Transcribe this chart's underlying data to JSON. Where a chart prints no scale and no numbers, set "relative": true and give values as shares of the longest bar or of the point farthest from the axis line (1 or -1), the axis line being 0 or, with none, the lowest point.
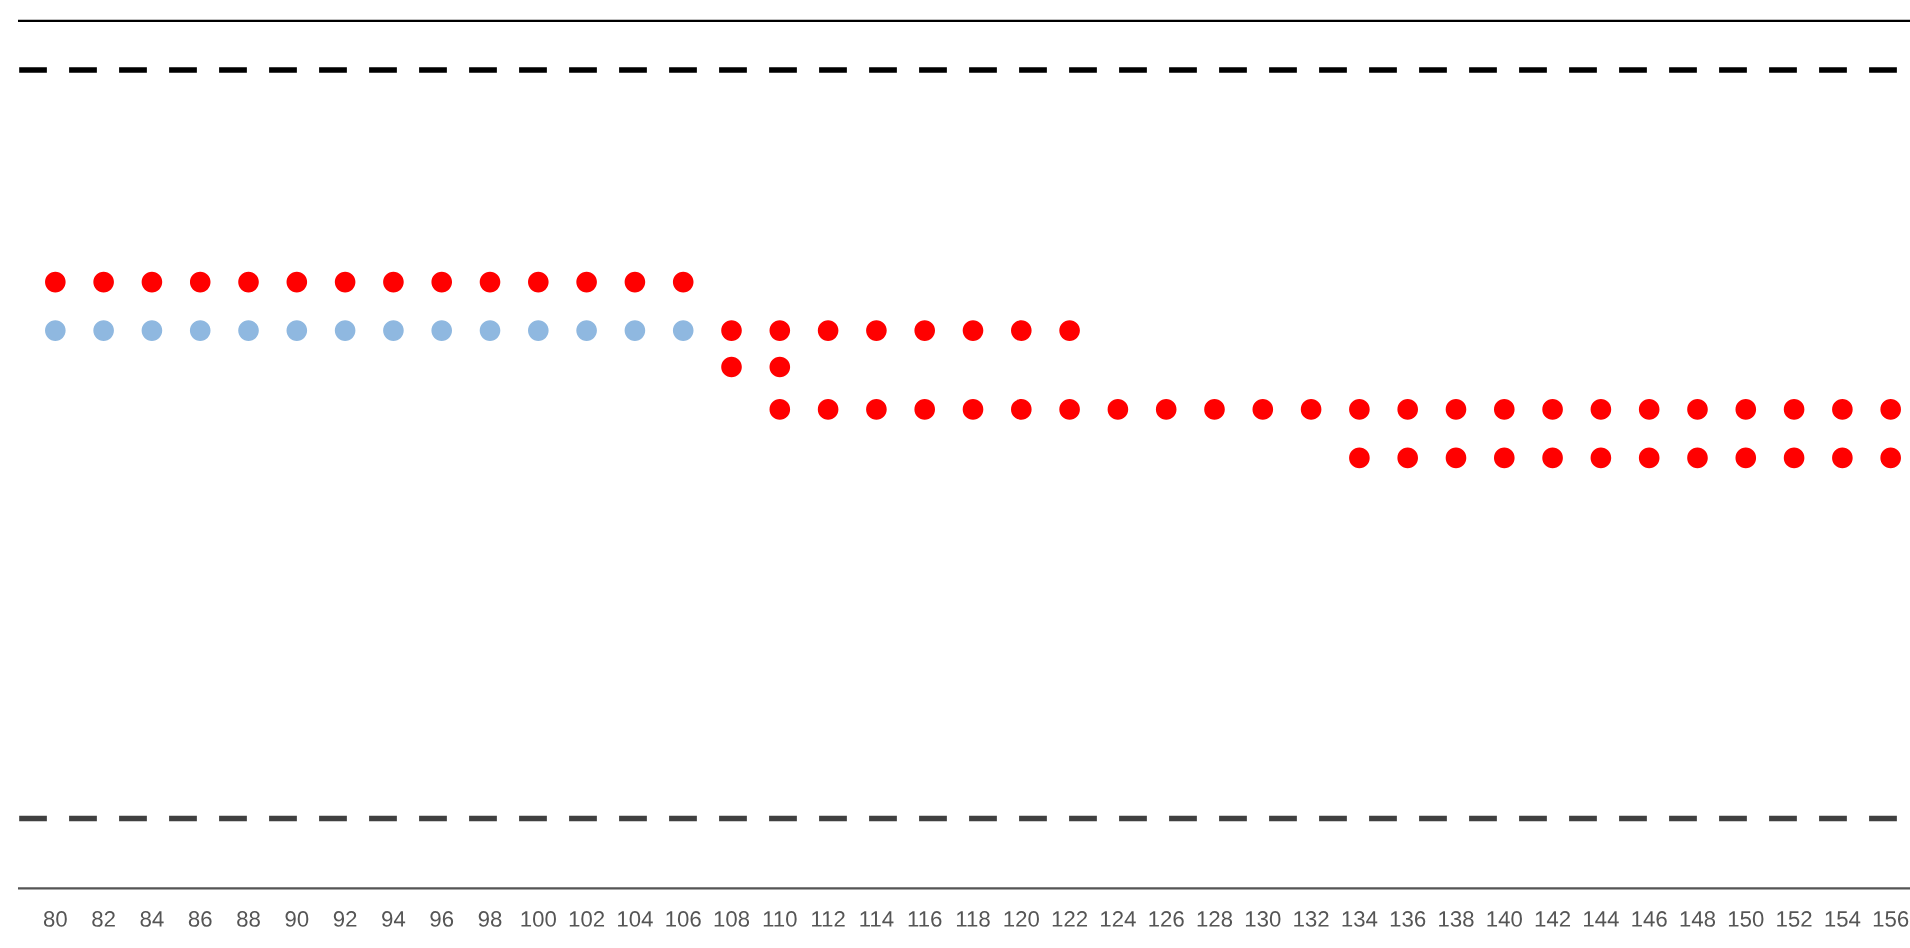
{
  "chart_data": {
    "type": "scatter",
    "relative": true,
    "marker": "circle",
    "categories": [
      "80",
      "82",
      "84",
      "86",
      "88",
      "90",
      "92",
      "94",
      "96",
      "98",
      "100",
      "102",
      "104",
      "106",
      "108",
      "110",
      "112",
      "114",
      "116",
      "118",
      "120",
      "122",
      "124",
      "126",
      "128",
      "130",
      "132",
      "134",
      "136",
      "138",
      "140",
      "142",
      "144",
      "146",
      "148",
      "150",
      "152",
      "154",
      "156"
    ],
    "series": [
      {
        "color": "#8fb8e0",
        "values": [
          0.92,
          0.92,
          0.92,
          0.92,
          0.92,
          0.92,
          0.92,
          0.92,
          0.92,
          0.92,
          0.92,
          0.92,
          0.92,
          0.92,
          null,
          null,
          null,
          null,
          null,
          null,
          null,
          null,
          null,
          null,
          null,
          null,
          null,
          null,
          null,
          null,
          null,
          null,
          null,
          null,
          null,
          null,
          null,
          null,
          null
        ]
      },
      {
        "color": "#ff0000",
        "values": [
          1.0,
          1.0,
          1.0,
          1.0,
          1.0,
          1.0,
          1.0,
          1.0,
          1.0,
          1.0,
          1.0,
          1.0,
          1.0,
          1.0,
          0.92,
          0.92,
          0.92,
          0.92,
          0.92,
          0.92,
          0.92,
          0.92,
          null,
          null,
          null,
          null,
          null,
          null,
          null,
          null,
          null,
          null,
          null,
          null,
          null,
          null,
          null,
          null,
          null
        ]
      },
      {
        "color": "#ff0000",
        "values": [
          null,
          null,
          null,
          null,
          null,
          null,
          null,
          null,
          null,
          null,
          null,
          null,
          null,
          null,
          0.86,
          0.86,
          null,
          null,
          null,
          null,
          null,
          null,
          null,
          null,
          null,
          null,
          null,
          null,
          null,
          null,
          null,
          null,
          null,
          null,
          null,
          null,
          null,
          null,
          null
        ]
      },
      {
        "color": "#ff0000",
        "values": [
          null,
          null,
          null,
          null,
          null,
          null,
          null,
          null,
          null,
          null,
          null,
          null,
          null,
          null,
          null,
          0.79,
          0.79,
          0.79,
          0.79,
          0.79,
          0.79,
          0.79,
          0.79,
          0.79,
          0.79,
          0.79,
          0.79,
          0.79,
          0.79,
          0.79,
          0.79,
          0.79,
          0.79,
          0.79,
          0.79,
          0.79,
          0.79,
          0.79,
          0.79
        ]
      },
      {
        "color": "#ff0000",
        "values": [
          null,
          null,
          null,
          null,
          null,
          null,
          null,
          null,
          null,
          null,
          null,
          null,
          null,
          null,
          null,
          null,
          null,
          null,
          null,
          null,
          null,
          null,
          null,
          null,
          null,
          null,
          null,
          0.71,
          0.71,
          0.71,
          0.71,
          0.71,
          0.71,
          0.71,
          0.71,
          0.71,
          0.71,
          0.71,
          0.71
        ]
      }
    ],
    "ref_lines": [
      {
        "axis": "y",
        "value": 1.35,
        "color": "#000000",
        "line_style": "dashed"
      },
      {
        "axis": "y",
        "value": 0.115,
        "color": "#404040",
        "line_style": "dashed"
      }
    ]
  }
}
